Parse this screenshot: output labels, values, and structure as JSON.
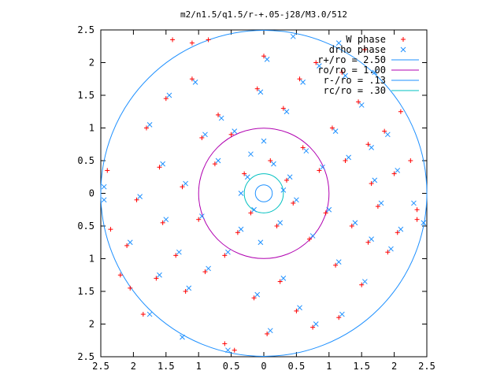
{
  "chart_data": {
    "type": "scatter",
    "title": "m2/n1.5/q1.5/r-+.05-j28/M3.0/512",
    "xlabel": "",
    "ylabel": "",
    "xlim": [
      -2.5,
      2.5
    ],
    "ylim": [
      -2.5,
      2.5
    ],
    "x_tick_labels": [
      "2.5",
      "2",
      "1.5",
      "1",
      "0.5",
      "0",
      "0.5",
      "1",
      "1.5",
      "2",
      "2.5"
    ],
    "y_tick_labels": [
      "2.5",
      "2",
      "1.5",
      "1",
      "0.5",
      "0",
      "0.5",
      "1",
      "1.5",
      "2",
      "2.5"
    ],
    "grid": false,
    "legend_position": "top-right",
    "legend": [
      {
        "label": "W phase",
        "marker": "plus",
        "color": "#ff0000"
      },
      {
        "label": "drho phase",
        "marker": "cross",
        "color": "#1e90ff"
      },
      {
        "label": "r+/ro = 2.50",
        "marker": "line",
        "color": "#1e90ff"
      },
      {
        "label": "ro/ro = 1.00",
        "marker": "line",
        "color": "#b000b0"
      },
      {
        "label": "r-/ro = .13",
        "marker": "line",
        "color": "#1e90ff"
      },
      {
        "label": "rc/ro = .30",
        "marker": "line",
        "color": "#00c0c0"
      }
    ],
    "circles": [
      {
        "name": "r+/ro",
        "r": 2.5,
        "color": "#1e90ff"
      },
      {
        "name": "ro/ro",
        "r": 1.0,
        "color": "#b000b0"
      },
      {
        "name": "r-/ro",
        "r": 0.13,
        "color": "#1e90ff"
      },
      {
        "name": "rc/ro",
        "r": 0.3,
        "color": "#00c0c0"
      }
    ],
    "series": [
      {
        "name": "W phase",
        "marker": "plus",
        "color": "#ff0000",
        "points": [
          [
            -2.4,
            0.35
          ],
          [
            -2.35,
            -0.55
          ],
          [
            -2.2,
            -1.25
          ],
          [
            -2.05,
            -1.45
          ],
          [
            -1.85,
            -1.85
          ],
          [
            -1.4,
            2.35
          ],
          [
            -1.1,
            2.3
          ],
          [
            -0.85,
            2.35
          ],
          [
            -0.6,
            -2.3
          ],
          [
            -0.45,
            -2.4
          ],
          [
            1.55,
            2.2
          ],
          [
            2.1,
            1.25
          ],
          [
            2.35,
            -0.25
          ],
          [
            2.35,
            -0.4
          ],
          [
            2.25,
            0.5
          ],
          [
            -2.1,
            -0.8
          ],
          [
            -1.95,
            -0.1
          ],
          [
            -1.6,
            0.4
          ],
          [
            -1.35,
            -0.95
          ],
          [
            -1.1,
            1.75
          ],
          [
            -0.9,
            -1.2
          ],
          [
            -0.7,
            1.2
          ],
          [
            -0.5,
            0.9
          ],
          [
            -0.4,
            -0.6
          ],
          [
            -0.3,
            0.3
          ],
          [
            -0.2,
            -0.3
          ],
          [
            0.1,
            0.5
          ],
          [
            0.2,
            -0.5
          ],
          [
            0.35,
            0.2
          ],
          [
            0.45,
            -0.15
          ],
          [
            0.6,
            0.7
          ],
          [
            0.7,
            -0.7
          ],
          [
            0.85,
            0.35
          ],
          [
            0.95,
            -0.3
          ],
          [
            1.05,
            1.0
          ],
          [
            1.1,
            -1.1
          ],
          [
            1.25,
            0.5
          ],
          [
            1.35,
            -0.5
          ],
          [
            1.45,
            1.4
          ],
          [
            1.5,
            -1.4
          ],
          [
            1.65,
            0.15
          ],
          [
            1.75,
            -0.2
          ],
          [
            1.85,
            0.95
          ],
          [
            1.9,
            -0.9
          ],
          [
            2.0,
            0.3
          ],
          [
            2.05,
            -0.6
          ],
          [
            0.3,
            1.3
          ],
          [
            0.25,
            -1.35
          ],
          [
            0.55,
            1.75
          ],
          [
            0.5,
            -1.8
          ],
          [
            0.8,
            2.0
          ],
          [
            0.75,
            -2.05
          ],
          [
            1.2,
            1.85
          ],
          [
            1.15,
            -1.9
          ],
          [
            -0.1,
            1.6
          ],
          [
            -0.15,
            -1.6
          ],
          [
            0.0,
            2.1
          ],
          [
            0.05,
            -2.15
          ],
          [
            1.6,
            0.75
          ],
          [
            1.6,
            -0.75
          ],
          [
            -1.8,
            1.0
          ],
          [
            -1.55,
            -0.45
          ],
          [
            -1.25,
            0.1
          ],
          [
            -1.0,
            -0.4
          ],
          [
            -0.75,
            0.45
          ],
          [
            -0.6,
            -0.95
          ],
          [
            -0.95,
            0.85
          ],
          [
            -1.5,
            1.45
          ],
          [
            -1.65,
            -1.3
          ],
          [
            -1.2,
            -1.5
          ]
        ]
      },
      {
        "name": "drho phase",
        "marker": "cross",
        "color": "#1e90ff",
        "points": [
          [
            -2.45,
            0.1
          ],
          [
            -2.45,
            -0.1
          ],
          [
            -1.75,
            -1.85
          ],
          [
            -1.25,
            -2.2
          ],
          [
            -0.55,
            -2.4
          ],
          [
            0.45,
            2.4
          ],
          [
            1.15,
            2.3
          ],
          [
            1.7,
            1.85
          ],
          [
            2.3,
            -0.15
          ],
          [
            2.45,
            -0.45
          ],
          [
            -2.05,
            -0.75
          ],
          [
            -1.9,
            -0.05
          ],
          [
            -1.55,
            0.45
          ],
          [
            -1.3,
            -0.9
          ],
          [
            -1.05,
            1.7
          ],
          [
            -0.85,
            -1.15
          ],
          [
            -0.65,
            1.15
          ],
          [
            -0.45,
            0.95
          ],
          [
            -0.35,
            -0.55
          ],
          [
            -0.25,
            0.25
          ],
          [
            -0.15,
            -0.25
          ],
          [
            0.15,
            0.45
          ],
          [
            0.25,
            -0.45
          ],
          [
            0.4,
            0.25
          ],
          [
            0.5,
            -0.1
          ],
          [
            0.65,
            0.65
          ],
          [
            0.75,
            -0.65
          ],
          [
            0.9,
            0.4
          ],
          [
            1.0,
            -0.25
          ],
          [
            1.1,
            0.95
          ],
          [
            1.15,
            -1.05
          ],
          [
            1.3,
            0.55
          ],
          [
            1.4,
            -0.45
          ],
          [
            1.5,
            1.35
          ],
          [
            1.55,
            -1.35
          ],
          [
            1.7,
            0.2
          ],
          [
            1.8,
            -0.15
          ],
          [
            1.9,
            0.9
          ],
          [
            1.95,
            -0.85
          ],
          [
            2.05,
            0.35
          ],
          [
            2.1,
            -0.55
          ],
          [
            0.35,
            1.25
          ],
          [
            0.3,
            -1.3
          ],
          [
            0.6,
            1.7
          ],
          [
            0.55,
            -1.75
          ],
          [
            0.85,
            1.95
          ],
          [
            0.8,
            -2.0
          ],
          [
            1.25,
            1.8
          ],
          [
            1.2,
            -1.85
          ],
          [
            -0.05,
            1.55
          ],
          [
            -0.1,
            -1.55
          ],
          [
            0.05,
            2.05
          ],
          [
            0.1,
            -2.1
          ],
          [
            1.65,
            0.7
          ],
          [
            1.65,
            -0.7
          ],
          [
            -1.75,
            1.05
          ],
          [
            -1.5,
            -0.4
          ],
          [
            -1.2,
            0.15
          ],
          [
            -0.95,
            -0.35
          ],
          [
            -0.7,
            0.5
          ],
          [
            -0.55,
            -0.9
          ],
          [
            -0.9,
            0.9
          ],
          [
            -1.45,
            1.5
          ],
          [
            -1.6,
            -1.25
          ],
          [
            -1.15,
            -1.45
          ],
          [
            -0.2,
            0.6
          ],
          [
            0.0,
            0.8
          ],
          [
            -0.35,
            0.0
          ],
          [
            0.3,
            0.05
          ],
          [
            -0.05,
            -0.75
          ]
        ]
      }
    ]
  }
}
